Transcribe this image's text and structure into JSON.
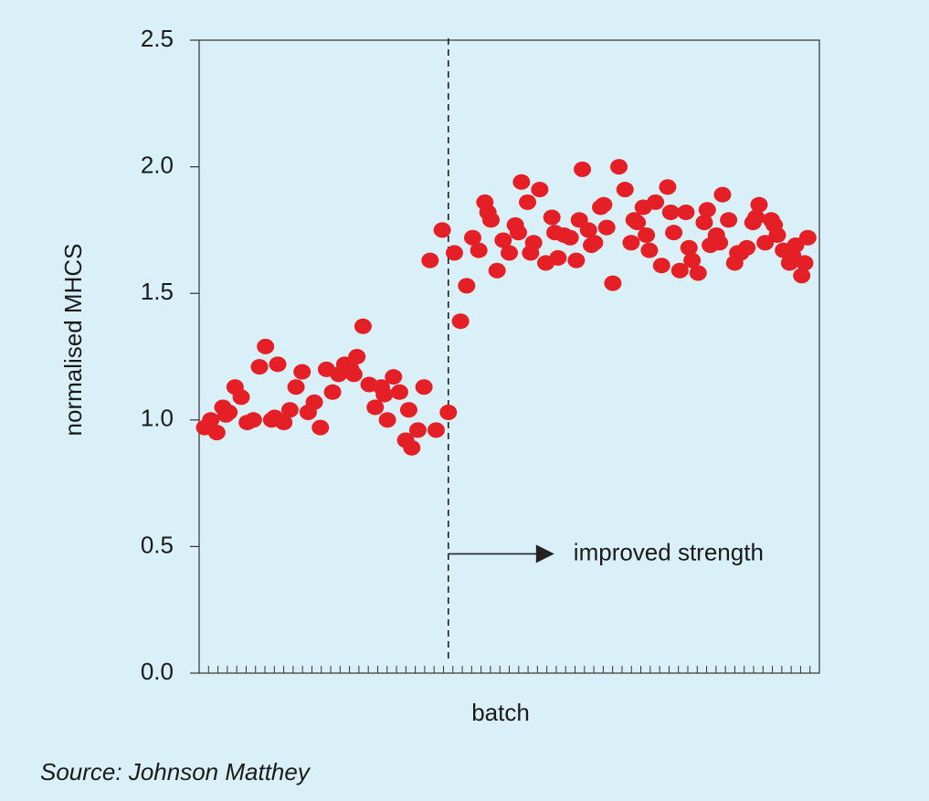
{
  "source_note": "Source: Johnson Matthey",
  "chart_data": {
    "type": "scatter",
    "title": "",
    "xlabel": "batch",
    "ylabel": "normalised MHCS",
    "ylim": [
      0,
      2.5
    ],
    "yticks": [
      "0.0",
      "0.5",
      "1.0",
      "1.5",
      "2.0",
      "2.5"
    ],
    "xlim": [
      0,
      100
    ],
    "minor_x_ticks": 66,
    "grid": false,
    "marker_color": "#e41f26",
    "divider_x": 40,
    "annotation": {
      "text": "improved strength",
      "y": 0.5
    },
    "series": [
      {
        "x": [
          0,
          1,
          2,
          3,
          4,
          5,
          6,
          7,
          8,
          9,
          10,
          11,
          12,
          13,
          14,
          15,
          16,
          17,
          18,
          19,
          20,
          21,
          22,
          23,
          24,
          25,
          26,
          27,
          28,
          29,
          30,
          31,
          32,
          33,
          34,
          35,
          36,
          37,
          38,
          39,
          40,
          41,
          42,
          43,
          44,
          45,
          46,
          47,
          48,
          49,
          50,
          51,
          52,
          53,
          54,
          55,
          56,
          57,
          58,
          59,
          60,
          61,
          62,
          63,
          64,
          65,
          66,
          67,
          68,
          69,
          70,
          71,
          72,
          73,
          74,
          75,
          76,
          77,
          78,
          79,
          80,
          81,
          82,
          83,
          84,
          85,
          86,
          87,
          88,
          89,
          90,
          91,
          92,
          93,
          94,
          95,
          96,
          97,
          98,
          99
        ],
        "y": [
          0.97,
          1.0,
          0.95,
          1.05,
          1.03,
          1.13,
          1.09,
          0.99,
          1.0,
          1.21,
          1.29,
          1.0,
          1.22,
          0.99,
          1.04,
          1.13,
          1.19,
          1.03,
          1.07,
          0.97,
          1.2,
          1.11,
          1.18,
          1.22,
          1.2,
          1.25,
          1.37,
          1.14,
          1.05,
          1.13,
          1.0,
          1.17,
          1.11,
          0.92,
          0.89,
          0.96,
          1.13,
          1.63,
          0.96,
          1.75,
          1.03,
          1.66,
          1.39,
          1.53,
          1.72,
          1.67,
          1.86,
          1.79,
          1.59,
          1.71,
          1.66,
          1.77,
          1.94,
          1.86,
          1.7,
          1.91,
          1.62,
          1.8,
          1.64,
          1.73,
          1.72,
          1.63,
          1.99,
          1.75,
          1.7,
          1.84,
          1.76,
          1.54,
          2.0,
          1.91,
          1.7,
          1.78,
          1.84,
          1.67,
          1.86,
          1.61,
          1.92,
          1.74,
          1.59,
          1.82,
          1.63,
          1.58,
          1.78,
          1.69,
          1.73,
          1.89,
          1.79,
          1.62,
          1.66,
          1.68,
          1.78,
          1.85,
          1.7,
          1.79,
          1.73,
          1.67,
          1.62,
          1.69,
          1.57,
          1.72
        ]
      },
      {
        "x": [
          3.5,
          11.5,
          24.5,
          29.5,
          33.5,
          46.5,
          51.5,
          53.5,
          57.5,
          61.5,
          63.5,
          65.5,
          70.5,
          72.5,
          76.5,
          79.5,
          82.5,
          84.5,
          87.5,
          90.5,
          93.5,
          96.5,
          98.5
        ],
        "y": [
          1.02,
          1.01,
          1.18,
          1.1,
          1.04,
          1.82,
          1.74,
          1.66,
          1.74,
          1.79,
          1.69,
          1.85,
          1.79,
          1.73,
          1.82,
          1.68,
          1.83,
          1.7,
          1.66,
          1.8,
          1.77,
          1.65,
          1.62
        ]
      }
    ]
  }
}
